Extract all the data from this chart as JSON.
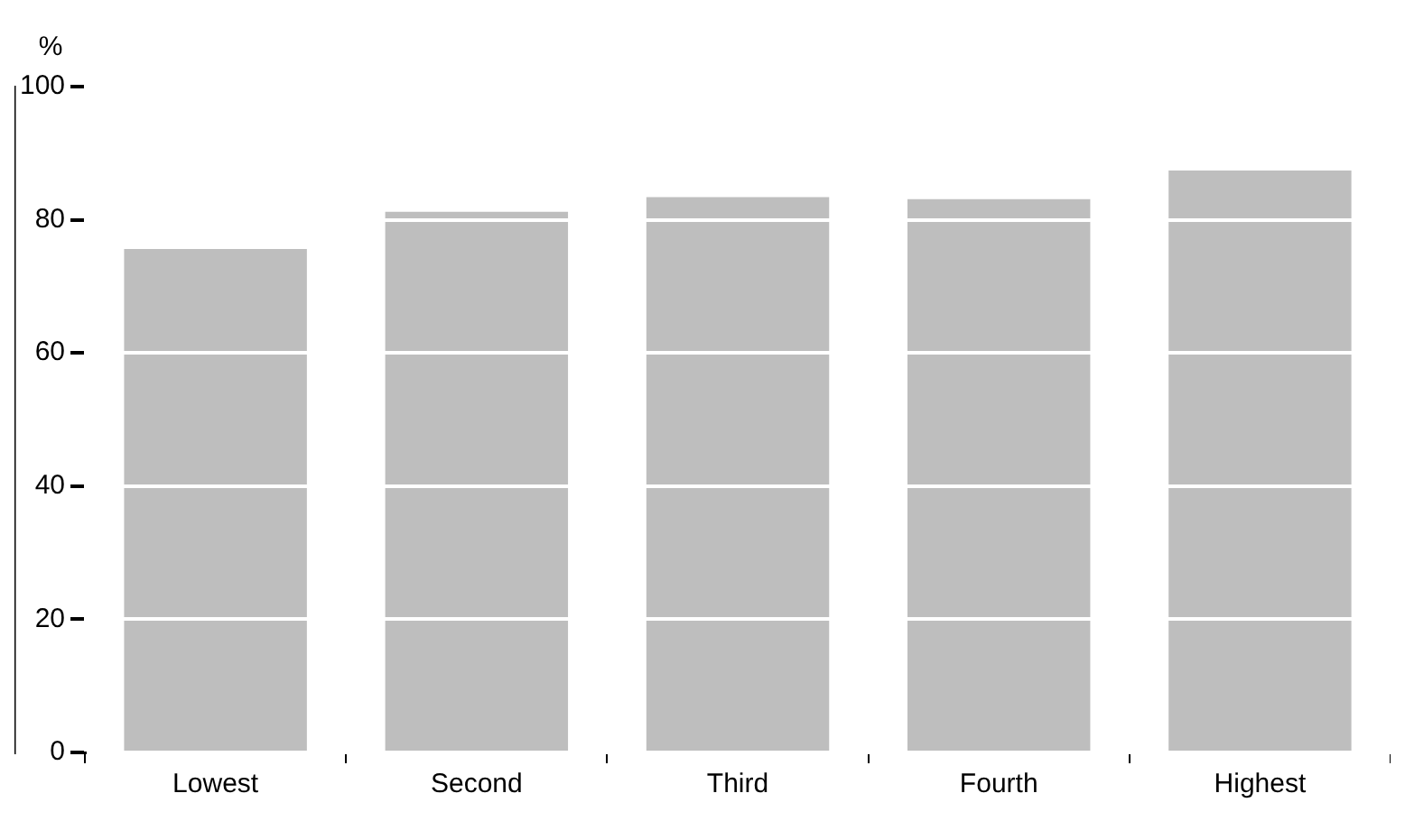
{
  "chart_data": {
    "type": "bar",
    "ylabel": "%",
    "categories": [
      "Lowest",
      "Second",
      "Third",
      "Fourth",
      "Highest"
    ],
    "values": [
      75.6,
      81.2,
      83.4,
      83.1,
      87.4
    ],
    "color": "#bebebe",
    "ylim": [
      0,
      100
    ],
    "yticks": [
      0,
      20,
      40,
      60,
      80,
      100
    ],
    "grid": "y"
  }
}
